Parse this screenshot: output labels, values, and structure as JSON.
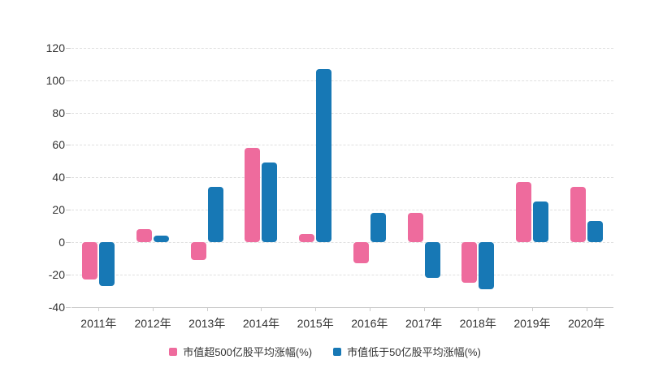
{
  "chart_data": {
    "type": "bar",
    "title": "",
    "categories": [
      "2011年",
      "2012年",
      "2013年",
      "2014年",
      "2015年",
      "2016年",
      "2017年",
      "2018年",
      "2019年",
      "2020年"
    ],
    "series": [
      {
        "name": "市值超500亿股平均涨幅(%)",
        "color": "#ee6b9d",
        "values": [
          -23,
          8,
          -11,
          58,
          5,
          -13,
          18,
          -25,
          37,
          34
        ]
      },
      {
        "name": "市值低于50亿股平均涨幅(%)",
        "color": "#1778b5",
        "values": [
          -27,
          4,
          34,
          49,
          107,
          18,
          -22,
          -29,
          25,
          13
        ]
      }
    ],
    "xlabel": "",
    "ylabel": "",
    "ylim": [
      -40,
      120
    ],
    "y_ticks": [
      120,
      100,
      80,
      60,
      40,
      20,
      0,
      -20,
      -40
    ],
    "grid": "horizontal-dashed",
    "legend_position": "bottom",
    "background_color": "#ffffff",
    "axis_line_color": "#cccccc",
    "gridline_color": "#e0e0e0",
    "label_color": "#333333"
  }
}
